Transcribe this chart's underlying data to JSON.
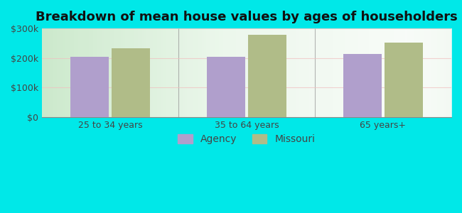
{
  "title": "Breakdown of mean house values by ages of householders",
  "categories": [
    "25 to 34 years",
    "35 to 64 years",
    "65 years+"
  ],
  "agency_values": [
    205000,
    205000,
    213000
  ],
  "missouri_values": [
    232000,
    278000,
    252000
  ],
  "bar_color_agency": "#b09fcc",
  "bar_color_missouri": "#b0bc88",
  "background_color": "#00e8e8",
  "plot_bg_color": "#e0f0e0",
  "ylim": [
    0,
    300000
  ],
  "yticks": [
    0,
    100000,
    200000,
    300000
  ],
  "ytick_labels": [
    "$0",
    "$100k",
    "$200k",
    "$300k"
  ],
  "legend_labels": [
    "Agency",
    "Missouri"
  ],
  "title_fontsize": 13,
  "tick_fontsize": 9,
  "legend_fontsize": 10,
  "bar_width": 0.28,
  "group_positions": [
    0.25,
    0.5,
    0.75
  ]
}
